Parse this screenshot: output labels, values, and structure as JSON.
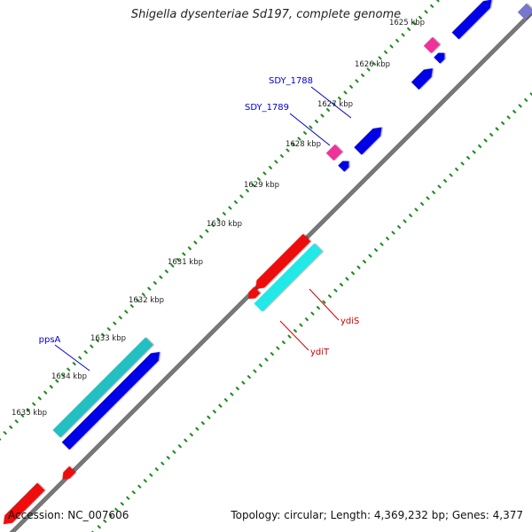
{
  "title": "Shigella dysenteriae Sd197, complete genome",
  "footer": {
    "accession_label": "Accession:",
    "accession": "NC_007606",
    "topology_label": "Topology:",
    "topology": "circular",
    "length_label": "Length:",
    "length": "4,369,232 bp",
    "genes_label": "Genes:",
    "genes": "4,377"
  },
  "ticks": [
    {
      "label": "1625 kbp",
      "pos": 1625
    },
    {
      "label": "1626 kbp",
      "pos": 1626
    },
    {
      "label": "1627 kbp",
      "pos": 1627
    },
    {
      "label": "1628 kbp",
      "pos": 1628
    },
    {
      "label": "1629 kbp",
      "pos": 1629
    },
    {
      "label": "1630 kbp",
      "pos": 1630
    },
    {
      "label": "1631 kbp",
      "pos": 1631
    },
    {
      "label": "1632 kbp",
      "pos": 1632
    },
    {
      "label": "1633 kbp",
      "pos": 1633
    },
    {
      "label": "1634 kbp",
      "pos": 1634
    },
    {
      "label": "1635 kbp",
      "pos": 1635
    }
  ],
  "gene_labels": [
    {
      "text": "SDY_1788",
      "color": "#0000cc"
    },
    {
      "text": "SDY_1789",
      "color": "#0000cc"
    },
    {
      "text": "ppsA",
      "color": "#0000cc"
    },
    {
      "text": "ydiS",
      "color": "#cc0000"
    },
    {
      "text": "ydiT",
      "color": "#cc0000"
    }
  ],
  "colors": {
    "backbone": "#777777",
    "tick": "#1a8a1a",
    "cds_forward": "#0000e6",
    "cds_reverse": "#ee1111",
    "rna_forward": "#20c0c0",
    "rna_reverse": "#20e8e8",
    "misc": "#ee3399",
    "unknown": "#7777cc"
  }
}
